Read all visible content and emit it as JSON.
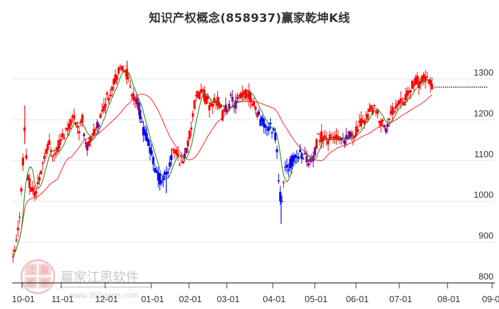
{
  "title": "知识产权概念(858937)赢家乾坤K线",
  "watermark": {
    "logo_chars": [
      "江",
      "赢",
      "恩",
      "家"
    ],
    "name": "赢家江恩软件",
    "url": "www.360gann.com"
  },
  "colors": {
    "up": "#ff0000",
    "down": "#0000ff",
    "neutral": "#800080",
    "ma_short": "#228B22",
    "ma_long": "#ff3333",
    "grid": "#e6e6e6",
    "axis": "#333333"
  },
  "chart_data": {
    "type": "candlestick",
    "title": "知识产权概念(858937)赢家乾坤K线",
    "xlabel": "",
    "ylabel": "",
    "ylim": [
      800,
      1340
    ],
    "y_ticks": [
      800,
      900,
      1000,
      1100,
      1200,
      1300
    ],
    "x_ticks": [
      "10-01",
      "11-01",
      "12-01",
      "01-01",
      "02-01",
      "03-01",
      "04-01",
      "05-01",
      "06-01",
      "07-01",
      "08-01",
      "09-01"
    ],
    "grid": true,
    "last_close_line": 1280,
    "series": [
      {
        "name": "K线",
        "type": "candlestick",
        "key_points": [
          {
            "date": "10-01",
            "approx_close": 850
          },
          {
            "date": "10-10",
            "approx_high": 1230
          },
          {
            "date": "11-01",
            "approx_close": 1150
          },
          {
            "date": "12-01",
            "approx_close": 1270
          },
          {
            "date": "12-10",
            "approx_high": 1345
          },
          {
            "date": "01-01",
            "approx_close": 1080
          },
          {
            "date": "01-05",
            "approx_low": 1020
          },
          {
            "date": "02-01",
            "approx_close": 1110
          },
          {
            "date": "02-10",
            "approx_high": 1290
          },
          {
            "date": "03-01",
            "approx_close": 1260
          },
          {
            "date": "04-01",
            "approx_close": 1010
          },
          {
            "date": "04-05",
            "approx_low": 945
          },
          {
            "date": "05-01",
            "approx_close": 1110
          },
          {
            "date": "06-01",
            "approx_close": 1150
          },
          {
            "date": "06-15",
            "approx_close": 1220
          },
          {
            "date": "07-01",
            "approx_close": 1260
          },
          {
            "date": "07-20",
            "approx_high": 1310
          },
          {
            "date": "07-25",
            "approx_close": 1280
          }
        ]
      },
      {
        "name": "短期均线",
        "type": "line",
        "color": "#228B22"
      },
      {
        "name": "长期均线",
        "type": "line",
        "color": "#ff3333"
      }
    ]
  }
}
